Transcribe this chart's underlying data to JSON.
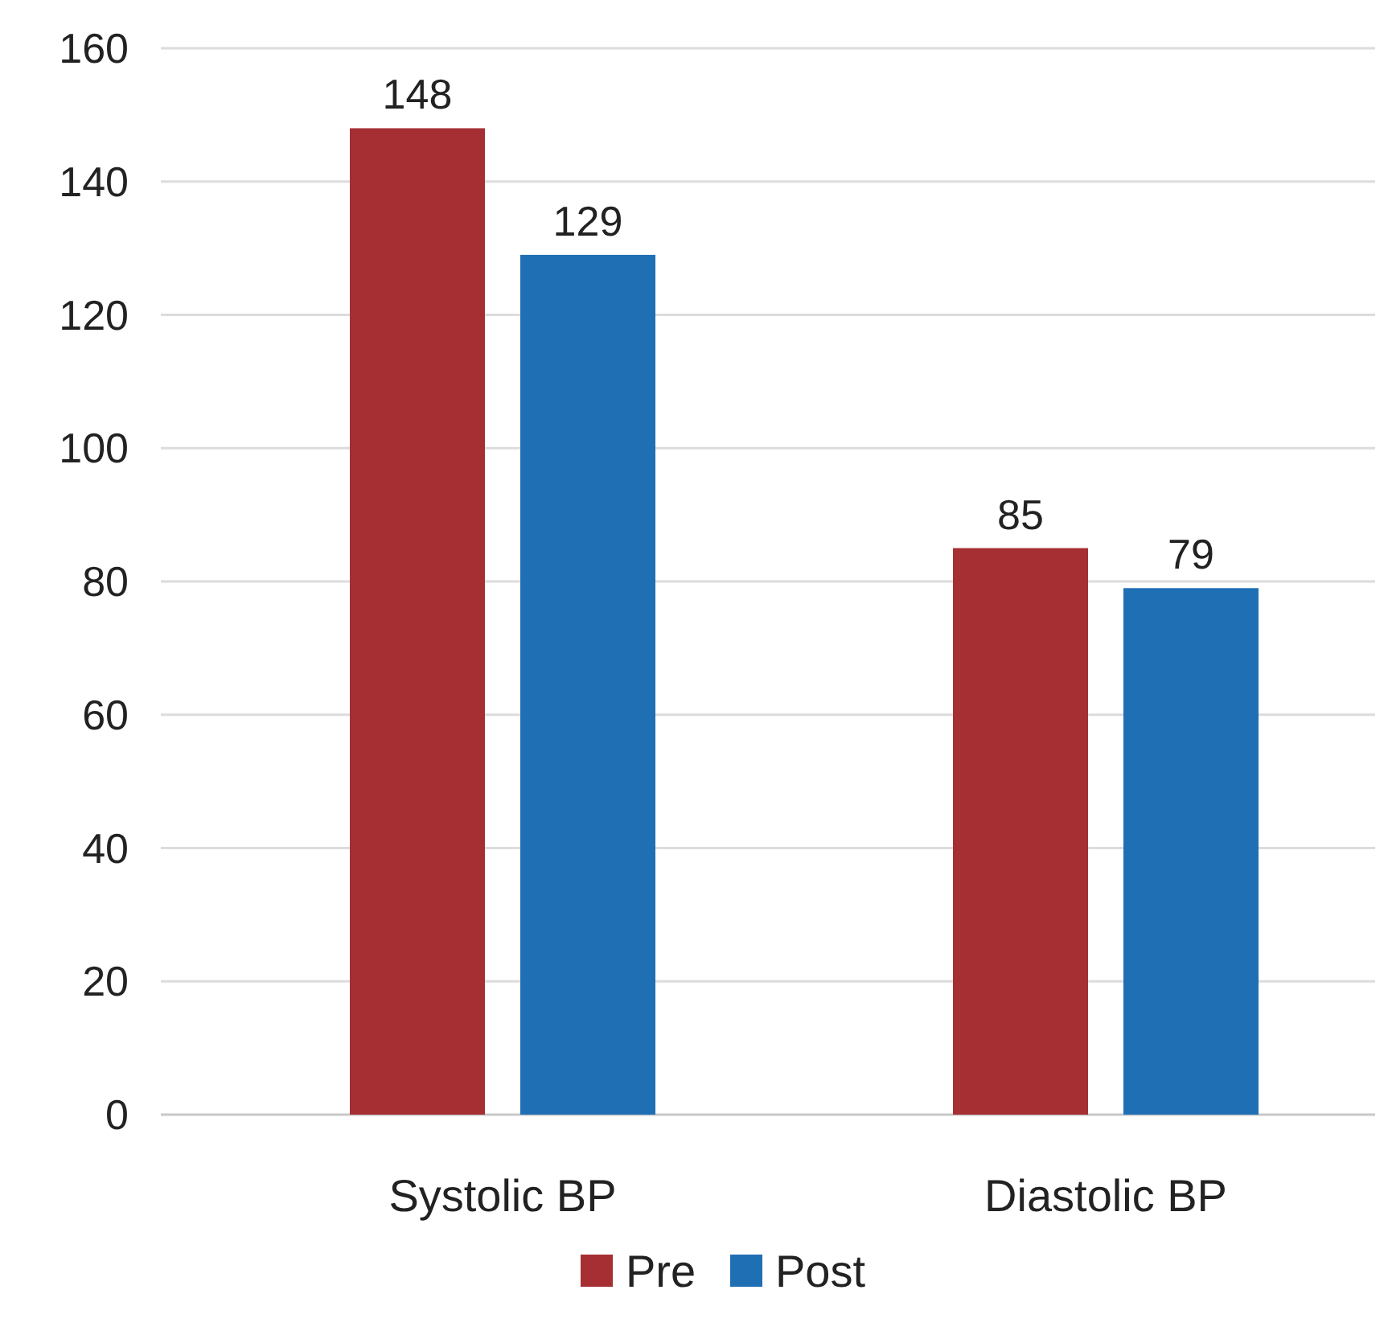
{
  "chart_data": {
    "type": "bar",
    "categories": [
      "Systolic BP",
      "Diastolic BP"
    ],
    "series": [
      {
        "name": "Pre",
        "color": "#a52f33",
        "values": [
          148,
          85
        ]
      },
      {
        "name": "Post",
        "color": "#1f6fb4",
        "values": [
          129,
          79
        ]
      }
    ],
    "ylim": [
      0,
      160
    ],
    "yticks": [
      0,
      20,
      40,
      60,
      80,
      100,
      120,
      140,
      160
    ],
    "grid": "y",
    "data_labels": true,
    "legend": "bottom"
  }
}
